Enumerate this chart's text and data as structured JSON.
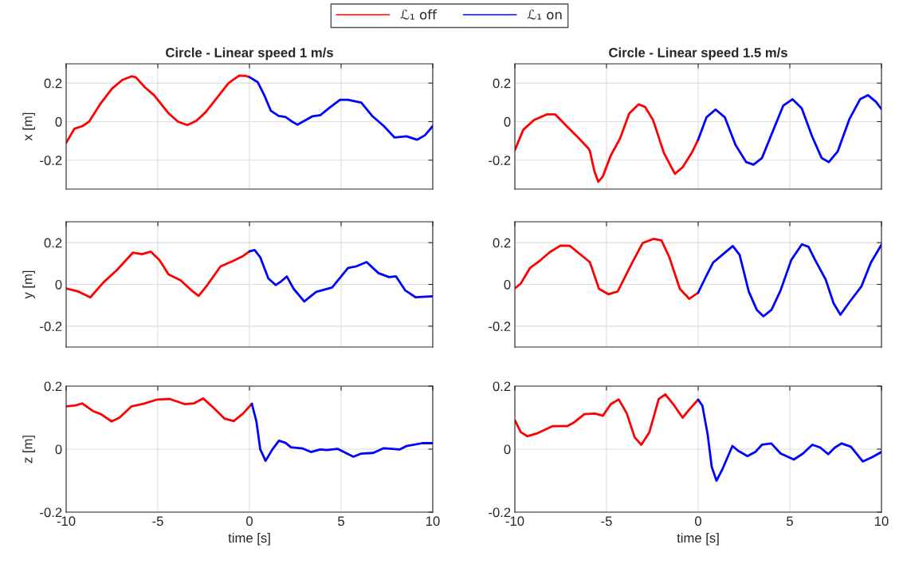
{
  "chart_data": [
    {
      "type": "line",
      "title": "Circle - Linear speed 1 m/s",
      "ylabel": "x [m]",
      "xlim": [
        -10,
        10
      ],
      "xticks": [
        -10,
        -5,
        0,
        5,
        10
      ],
      "ylim": [
        -0.35,
        0.3
      ],
      "yticks": [
        -0.2,
        0,
        0.2
      ],
      "grid": true,
      "tick_labels": "y",
      "legend": "top",
      "series": [
        {
          "name": "ℒ₁ off",
          "color": "#ff0000",
          "x": [
            -10,
            -9.55,
            -9.1,
            -8.75,
            -8.1,
            -7.5,
            -6.94,
            -6.43,
            -6.2,
            -5.7,
            -5.2,
            -4.4,
            -3.9,
            -3.39,
            -2.9,
            -2.39,
            -1.72,
            -1.14,
            -0.57,
            -0.2,
            0
          ],
          "values": [
            -0.11,
            -0.037,
            -0.023,
            0,
            0.097,
            0.171,
            0.216,
            0.235,
            0.23,
            0.178,
            0.137,
            0.042,
            0,
            -0.018,
            0.004,
            0.049,
            0.13,
            0.2,
            0.238,
            0.237,
            0.231
          ]
        },
        {
          "name": "ℒ₁ on",
          "color": "#0000ff",
          "x": [
            0,
            0.45,
            0.81,
            1.17,
            1.6,
            1.97,
            2.26,
            2.62,
            2.99,
            3.42,
            3.86,
            4.36,
            4.94,
            5.38,
            6.1,
            6.68,
            7.33,
            7.91,
            8.57,
            9.14,
            9.57,
            10
          ],
          "values": [
            0.231,
            0.205,
            0.137,
            0.056,
            0.029,
            0.024,
            0.004,
            -0.016,
            0.004,
            0.027,
            0.033,
            0.072,
            0.113,
            0.113,
            0.099,
            0.031,
            -0.023,
            -0.082,
            -0.076,
            -0.094,
            -0.071,
            -0.023
          ]
        }
      ]
    },
    {
      "type": "line",
      "title": "Circle - Linear speed 1.5 m/s",
      "xlim": [
        -10,
        10
      ],
      "xticks": [
        -10,
        -5,
        0,
        5,
        10
      ],
      "ylim": [
        -0.35,
        0.3
      ],
      "yticks": [
        -0.2,
        0,
        0.2
      ],
      "grid": true,
      "tick_labels": "y",
      "series": [
        {
          "color": "#ff0000",
          "x": [
            -10,
            -9.54,
            -8.96,
            -8.24,
            -7.8,
            -7.22,
            -6.5,
            -5.97,
            -5.9,
            -5.66,
            -5.45,
            -5.2,
            -4.77,
            -4.26,
            -3.76,
            -3.25,
            -2.89,
            -2.46,
            -1.87,
            -1.27,
            -0.85,
            -0.35,
            0
          ],
          "values": [
            -0.148,
            -0.042,
            0.008,
            0.038,
            0.038,
            -0.019,
            -0.087,
            -0.141,
            -0.155,
            -0.257,
            -0.312,
            -0.284,
            -0.176,
            -0.087,
            0.042,
            0.09,
            0.076,
            0.008,
            -0.162,
            -0.271,
            -0.237,
            -0.162,
            -0.094
          ]
        },
        {
          "color": "#0000ff",
          "x": [
            0,
            0.45,
            0.95,
            1.46,
            2.04,
            2.62,
            3.02,
            3.48,
            4.06,
            4.64,
            5.15,
            5.65,
            6.23,
            6.74,
            7.13,
            7.61,
            8.26,
            8.84,
            9.27,
            9.7,
            10
          ],
          "values": [
            -0.094,
            0.022,
            0.063,
            0.022,
            -0.121,
            -0.21,
            -0.223,
            -0.189,
            -0.053,
            0.083,
            0.116,
            0.069,
            -0.08,
            -0.189,
            -0.21,
            -0.155,
            0.015,
            0.117,
            0.137,
            0.103,
            0.065
          ]
        }
      ]
    },
    {
      "type": "line",
      "ylabel": "y [m]",
      "xlim": [
        -10,
        10
      ],
      "xticks": [
        -10,
        -5,
        0,
        5,
        10
      ],
      "ylim": [
        -0.3,
        0.3
      ],
      "yticks": [
        -0.2,
        0,
        0.2
      ],
      "grid": true,
      "tick_labels": "y",
      "series": [
        {
          "color": "#ff0000",
          "x": [
            -10,
            -9.33,
            -8.68,
            -7.96,
            -7.23,
            -6.36,
            -5.86,
            -5.38,
            -4.91,
            -4.41,
            -3.75,
            -3.17,
            -2.77,
            -2.3,
            -1.58,
            -0.86,
            -0.35,
            0
          ],
          "values": [
            -0.019,
            -0.034,
            -0.062,
            0.01,
            0.069,
            0.152,
            0.145,
            0.157,
            0.117,
            0.048,
            0.019,
            -0.028,
            -0.055,
            -0.003,
            0.086,
            0.114,
            0.136,
            0.158
          ]
        },
        {
          "color": "#0000ff",
          "x": [
            0,
            0.28,
            0.59,
            1.03,
            1.43,
            1.75,
            2.04,
            2.41,
            2.99,
            3.64,
            4.51,
            5.38,
            5.81,
            6.39,
            7.04,
            7.62,
            7.99,
            8.49,
            9.07,
            10
          ],
          "values": [
            0.158,
            0.165,
            0.13,
            0.029,
            -0.003,
            0.016,
            0.038,
            -0.021,
            -0.082,
            -0.036,
            -0.015,
            0.079,
            0.086,
            0.107,
            0.054,
            0.035,
            0.039,
            -0.028,
            -0.062,
            -0.057
          ]
        }
      ]
    },
    {
      "type": "line",
      "xlim": [
        -10,
        10
      ],
      "xticks": [
        -10,
        -5,
        0,
        5,
        10
      ],
      "ylim": [
        -0.3,
        0.3
      ],
      "yticks": [
        -0.2,
        0,
        0.2
      ],
      "grid": true,
      "tick_labels": "y",
      "series": [
        {
          "color": "#ff0000",
          "x": [
            -10,
            -9.68,
            -9.17,
            -8.67,
            -8.09,
            -7.51,
            -7.0,
            -6.49,
            -5.91,
            -5.41,
            -4.9,
            -4.39,
            -3.6,
            -3.02,
            -2.44,
            -2.0,
            -1.57,
            -1.0,
            -0.49,
            0
          ],
          "values": [
            -0.019,
            0.004,
            0.079,
            0.111,
            0.155,
            0.186,
            0.185,
            0.148,
            0.107,
            -0.021,
            -0.047,
            -0.034,
            0.104,
            0.199,
            0.218,
            0.211,
            0.13,
            -0.021,
            -0.069,
            -0.04
          ]
        },
        {
          "color": "#0000ff",
          "x": [
            0,
            0.45,
            0.81,
            1.32,
            1.89,
            2.26,
            2.76,
            3.2,
            3.56,
            4.0,
            4.5,
            5.08,
            5.66,
            6.02,
            6.38,
            6.96,
            7.39,
            7.76,
            8.26,
            8.91,
            9.42,
            10
          ],
          "values": [
            -0.04,
            0.042,
            0.104,
            0.142,
            0.184,
            0.142,
            -0.034,
            -0.122,
            -0.153,
            -0.122,
            -0.028,
            0.117,
            0.192,
            0.18,
            0.117,
            0.023,
            -0.091,
            -0.145,
            -0.084,
            -0.009,
            0.104,
            0.19
          ]
        }
      ]
    },
    {
      "type": "line",
      "ylabel": "z [m]",
      "xlabel": "time [s]",
      "xlim": [
        -10,
        10
      ],
      "xticks": [
        -10,
        -5,
        0,
        5,
        10
      ],
      "ylim": [
        -0.2,
        0.2
      ],
      "yticks": [
        -0.2,
        0,
        0.2
      ],
      "grid": true,
      "series": [
        {
          "color": "#ff0000",
          "x": [
            -10,
            -9.55,
            -9.12,
            -8.54,
            -8.1,
            -7.52,
            -7.09,
            -6.43,
            -5.78,
            -5.06,
            -4.33,
            -3.54,
            -3.04,
            -2.53,
            -2.01,
            -1.36,
            -0.86,
            -0.35,
            0.13
          ],
          "values": [
            0.136,
            0.138,
            0.145,
            0.121,
            0.111,
            0.088,
            0.1,
            0.136,
            0.144,
            0.157,
            0.159,
            0.143,
            0.145,
            0.161,
            0.134,
            0.097,
            0.089,
            0.113,
            0.144
          ]
        },
        {
          "color": "#0000ff",
          "x": [
            0.13,
            0.38,
            0.59,
            0.88,
            1.25,
            1.61,
            1.97,
            2.26,
            2.91,
            3.35,
            3.86,
            4.22,
            4.8,
            5.67,
            6.1,
            6.75,
            7.33,
            8.19,
            8.57,
            9.43,
            10
          ],
          "values": [
            0.144,
            0.088,
            -0.001,
            -0.037,
            -0.001,
            0.027,
            0.02,
            0.006,
            0.002,
            -0.009,
            -0.001,
            -0.003,
            0.001,
            -0.024,
            -0.014,
            -0.012,
            0.003,
            -0.001,
            0.01,
            0.019,
            0.019
          ]
        }
      ]
    },
    {
      "type": "line",
      "xlabel": "time [s]",
      "xlim": [
        -10,
        10
      ],
      "xticks": [
        -10,
        -5,
        0,
        5,
        10
      ],
      "ylim": [
        -0.2,
        0.2
      ],
      "yticks": [
        -0.2,
        0,
        0.2
      ],
      "grid": true,
      "series": [
        {
          "color": "#ff0000",
          "x": [
            -10,
            -9.68,
            -9.32,
            -8.74,
            -7.95,
            -7.15,
            -6.79,
            -6.21,
            -5.63,
            -5.2,
            -4.76,
            -4.33,
            -3.89,
            -3.46,
            -3.1,
            -2.66,
            -2.15,
            -1.79,
            -1.36,
            -0.85,
            -0.42,
            0
          ],
          "values": [
            0.092,
            0.054,
            0.041,
            0.051,
            0.073,
            0.073,
            0.084,
            0.111,
            0.113,
            0.106,
            0.143,
            0.158,
            0.113,
            0.037,
            0.014,
            0.054,
            0.159,
            0.174,
            0.143,
            0.1,
            0.13,
            0.157
          ]
        },
        {
          "color": "#0000ff",
          "x": [
            0,
            0.23,
            0.52,
            0.74,
            1.0,
            1.32,
            1.87,
            2.18,
            2.69,
            3.12,
            3.48,
            3.99,
            4.5,
            5.22,
            5.72,
            6.23,
            6.66,
            7.1,
            7.46,
            7.82,
            8.33,
            8.98,
            9.48,
            10
          ],
          "values": [
            0.157,
            0.138,
            0.046,
            -0.056,
            -0.1,
            -0.064,
            0.01,
            -0.005,
            -0.022,
            -0.009,
            0.014,
            0.018,
            -0.014,
            -0.033,
            -0.014,
            0.014,
            0.005,
            -0.016,
            0.005,
            0.018,
            0.008,
            -0.039,
            -0.026,
            -0.009
          ]
        }
      ]
    }
  ]
}
